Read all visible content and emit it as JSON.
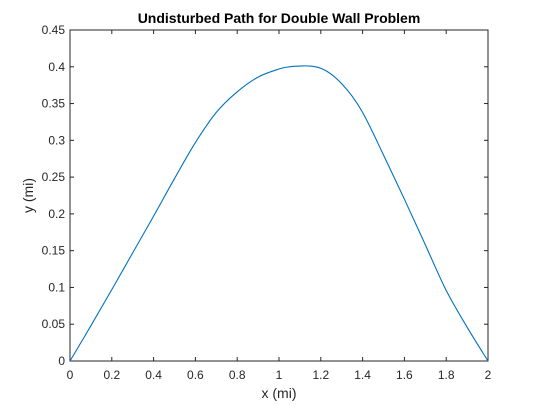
{
  "chart_data": {
    "type": "line",
    "title": "Undisturbed Path for Double Wall Problem",
    "xlabel": "x (mi)",
    "ylabel": "y (mi)",
    "xlim": [
      0,
      2
    ],
    "ylim": [
      0,
      0.45
    ],
    "xticks": [
      "0",
      "0.2",
      "0.4",
      "0.6",
      "0.8",
      "1",
      "1.2",
      "1.4",
      "1.6",
      "1.8",
      "2"
    ],
    "yticks": [
      "0",
      "0.05",
      "0.1",
      "0.15",
      "0.2",
      "0.25",
      "0.3",
      "0.35",
      "0.4",
      "0.45"
    ],
    "grid": false,
    "legend": false,
    "line_color": "#0072BD",
    "series": [
      {
        "x": [
          0,
          0.1,
          0.2,
          0.3,
          0.4,
          0.5,
          0.6,
          0.7,
          0.8,
          0.9,
          1.0,
          1.05,
          1.1,
          1.15,
          1.2,
          1.25,
          1.3,
          1.35,
          1.4,
          1.45,
          1.5,
          1.6,
          1.7,
          1.8,
          1.9,
          2.0
        ],
        "y": [
          0,
          0.048,
          0.097,
          0.147,
          0.197,
          0.248,
          0.297,
          0.338,
          0.366,
          0.386,
          0.397,
          0.4,
          0.401,
          0.401,
          0.398,
          0.39,
          0.377,
          0.36,
          0.338,
          0.31,
          0.28,
          0.22,
          0.158,
          0.096,
          0.046,
          0
        ]
      }
    ]
  }
}
